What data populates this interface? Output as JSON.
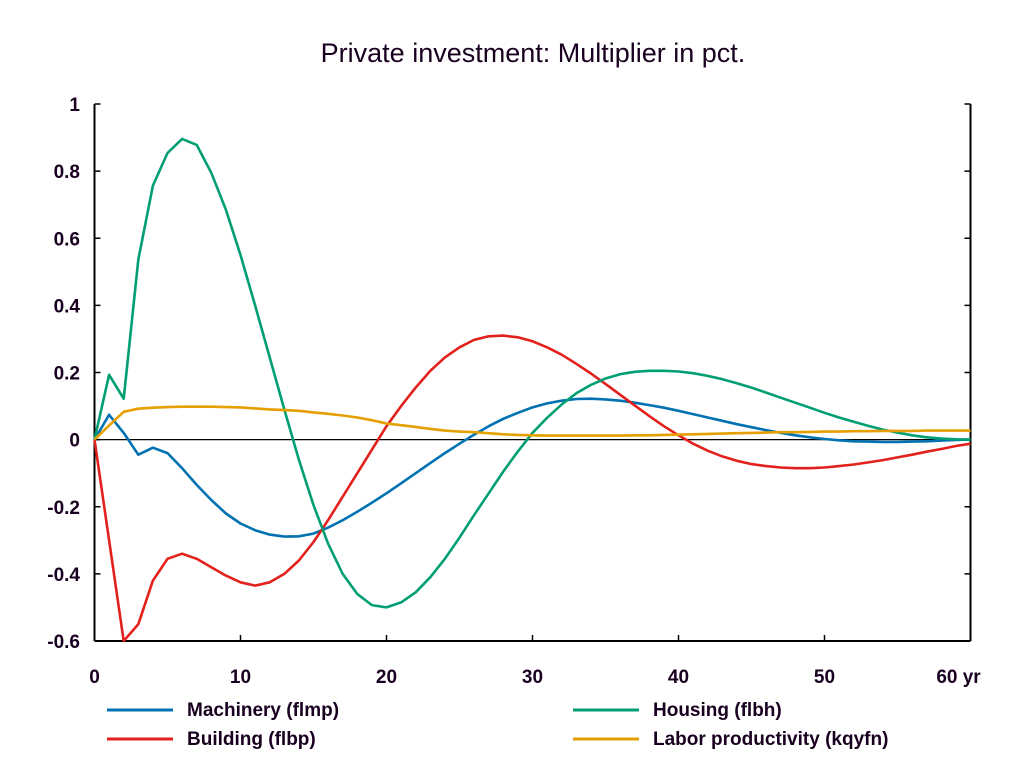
{
  "chart_data": {
    "type": "line",
    "title": "Private investment: Multiplier in pct.",
    "xlabel": "",
    "ylabel": "",
    "x_unit_label": "yr",
    "xlim": [
      0,
      60
    ],
    "ylim": [
      -0.6,
      1.0
    ],
    "x_ticks": [
      0,
      10,
      20,
      30,
      40,
      50,
      60
    ],
    "x_tick_labels": [
      "0",
      "10",
      "20",
      "30",
      "40",
      "50",
      "60 yr"
    ],
    "y_ticks": [
      -0.6,
      -0.4,
      -0.2,
      0,
      0.2,
      0.4,
      0.6,
      0.8,
      1
    ],
    "y_tick_labels": [
      "-0.6",
      "-0.4",
      "-0.2",
      "0",
      "0.2",
      "0.4",
      "0.6",
      "0.8",
      "1"
    ],
    "grid": false,
    "zero_line": true,
    "legend_position": "bottom",
    "x": [
      0,
      1,
      2,
      3,
      4,
      5,
      6,
      7,
      8,
      9,
      10,
      11,
      12,
      13,
      14,
      15,
      16,
      17,
      18,
      19,
      20,
      21,
      22,
      23,
      24,
      25,
      26,
      27,
      28,
      29,
      30,
      31,
      32,
      33,
      34,
      35,
      36,
      37,
      38,
      39,
      40,
      41,
      42,
      43,
      44,
      45,
      46,
      47,
      48,
      49,
      50,
      51,
      52,
      53,
      54,
      55,
      56,
      57,
      58,
      59,
      60
    ],
    "series": [
      {
        "name": "Machinery (flmp)",
        "color": "#0072b2",
        "values": [
          0,
          0.074,
          0.02,
          -0.045,
          -0.024,
          -0.04,
          -0.085,
          -0.135,
          -0.18,
          -0.22,
          -0.25,
          -0.27,
          -0.283,
          -0.289,
          -0.288,
          -0.28,
          -0.262,
          -0.24,
          -0.215,
          -0.188,
          -0.16,
          -0.13,
          -0.1,
          -0.07,
          -0.04,
          -0.012,
          0.015,
          0.04,
          0.062,
          0.08,
          0.096,
          0.108,
          0.116,
          0.121,
          0.122,
          0.12,
          0.116,
          0.11,
          0.103,
          0.095,
          0.086,
          0.076,
          0.066,
          0.056,
          0.046,
          0.037,
          0.028,
          0.02,
          0.013,
          0.007,
          0.002,
          -0.002,
          -0.005,
          -0.006,
          -0.007,
          -0.007,
          -0.006,
          -0.005,
          -0.003,
          -0.001,
          0.0
        ]
      },
      {
        "name": "Building (flbp)",
        "color": "#e3211c",
        "values": [
          0,
          -0.3,
          -0.6,
          -0.55,
          -0.42,
          -0.355,
          -0.34,
          -0.355,
          -0.38,
          -0.405,
          -0.425,
          -0.435,
          -0.425,
          -0.4,
          -0.36,
          -0.305,
          -0.24,
          -0.17,
          -0.1,
          -0.03,
          0.04,
          0.1,
          0.155,
          0.205,
          0.245,
          0.275,
          0.297,
          0.308,
          0.31,
          0.305,
          0.293,
          0.275,
          0.253,
          0.226,
          0.197,
          0.166,
          0.134,
          0.102,
          0.07,
          0.04,
          0.013,
          -0.012,
          -0.033,
          -0.05,
          -0.063,
          -0.073,
          -0.079,
          -0.083,
          -0.085,
          -0.085,
          -0.083,
          -0.079,
          -0.074,
          -0.068,
          -0.061,
          -0.053,
          -0.045,
          -0.036,
          -0.028,
          -0.019,
          -0.012
        ]
      },
      {
        "name": "Housing (flbh)",
        "color": "#009e73",
        "values": [
          0,
          0.193,
          0.122,
          0.536,
          0.757,
          0.854,
          0.896,
          0.878,
          0.795,
          0.685,
          0.55,
          0.4,
          0.245,
          0.09,
          -0.06,
          -0.195,
          -0.31,
          -0.4,
          -0.46,
          -0.493,
          -0.5,
          -0.485,
          -0.455,
          -0.41,
          -0.355,
          -0.292,
          -0.225,
          -0.16,
          -0.095,
          -0.035,
          0.02,
          0.065,
          0.105,
          0.138,
          0.163,
          0.182,
          0.195,
          0.202,
          0.205,
          0.205,
          0.203,
          0.198,
          0.19,
          0.18,
          0.168,
          0.155,
          0.14,
          0.125,
          0.11,
          0.095,
          0.08,
          0.066,
          0.053,
          0.041,
          0.03,
          0.021,
          0.013,
          0.007,
          0.003,
          0.001,
          0.0
        ]
      },
      {
        "name": "Labor productivity (kqyfn)",
        "color": "#e69f00",
        "values": [
          0,
          0.042,
          0.083,
          0.092,
          0.095,
          0.097,
          0.098,
          0.098,
          0.098,
          0.097,
          0.096,
          0.093,
          0.09,
          0.088,
          0.086,
          0.081,
          0.077,
          0.072,
          0.066,
          0.058,
          0.048,
          0.043,
          0.038,
          0.032,
          0.027,
          0.024,
          0.022,
          0.019,
          0.016,
          0.014,
          0.013,
          0.012,
          0.012,
          0.012,
          0.012,
          0.012,
          0.012,
          0.013,
          0.013,
          0.014,
          0.015,
          0.016,
          0.017,
          0.018,
          0.019,
          0.02,
          0.021,
          0.022,
          0.022,
          0.023,
          0.024,
          0.024,
          0.025,
          0.025,
          0.026,
          0.026,
          0.026,
          0.027,
          0.027,
          0.027,
          0.027
        ]
      }
    ]
  }
}
